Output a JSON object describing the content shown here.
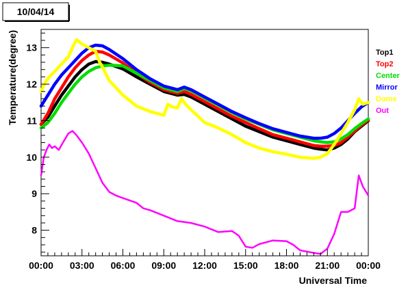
{
  "chart_data": {
    "type": "line",
    "title": "10/04/14",
    "xlabel": "Universal Time",
    "ylabel": "Temperature(degree)",
    "xlim": [
      0,
      24
    ],
    "ylim": [
      7.3,
      13.5
    ],
    "x_unit": "hours UT",
    "x_ticks": [
      {
        "value": 0,
        "label": "00:00"
      },
      {
        "value": 3,
        "label": "03:00"
      },
      {
        "value": 6,
        "label": "06:00"
      },
      {
        "value": 9,
        "label": "09:00"
      },
      {
        "value": 12,
        "label": "12:00"
      },
      {
        "value": 15,
        "label": "15:00"
      },
      {
        "value": 18,
        "label": "18:00"
      },
      {
        "value": 21,
        "label": "21:00"
      },
      {
        "value": 24,
        "label": "00:00"
      }
    ],
    "y_ticks": [
      {
        "value": 8,
        "label": "8"
      },
      {
        "value": 9,
        "label": "9"
      },
      {
        "value": 10,
        "label": "10"
      },
      {
        "value": 11,
        "label": "11"
      },
      {
        "value": 12,
        "label": "12"
      },
      {
        "value": 13,
        "label": "13"
      }
    ],
    "grid": false,
    "legend_position": "right",
    "series": [
      {
        "name": "Top1",
        "color": "#000000",
        "x": [
          0,
          0.5,
          1,
          1.5,
          2,
          2.5,
          3,
          3.5,
          4,
          4.5,
          5,
          6,
          7,
          8,
          9,
          9.5,
          10,
          10.5,
          11,
          12,
          13,
          14,
          15,
          16,
          17,
          18,
          19,
          20,
          20.5,
          21,
          21.5,
          22,
          22.5,
          23,
          23.5,
          24
        ],
        "y": [
          10.9,
          11.1,
          11.4,
          11.7,
          11.95,
          12.2,
          12.4,
          12.55,
          12.62,
          12.6,
          12.55,
          12.42,
          12.2,
          12.0,
          11.8,
          11.75,
          11.7,
          11.72,
          11.65,
          11.45,
          11.25,
          11.05,
          10.85,
          10.7,
          10.55,
          10.45,
          10.35,
          10.25,
          10.22,
          10.2,
          10.25,
          10.35,
          10.5,
          10.7,
          10.85,
          11.0
        ]
      },
      {
        "name": "Top2",
        "color": "#ff0000",
        "x": [
          0,
          0.5,
          1,
          1.5,
          2,
          2.5,
          3,
          3.5,
          4,
          4.5,
          5,
          6,
          7,
          8,
          9,
          9.5,
          10,
          10.5,
          11,
          12,
          13,
          14,
          15,
          16,
          17,
          18,
          19,
          20,
          20.5,
          21,
          21.5,
          22,
          22.5,
          23,
          23.5,
          24
        ],
        "y": [
          10.9,
          11.2,
          11.6,
          11.9,
          12.2,
          12.45,
          12.65,
          12.8,
          12.9,
          12.88,
          12.8,
          12.58,
          12.3,
          12.05,
          11.85,
          11.8,
          11.75,
          11.8,
          11.72,
          11.52,
          11.32,
          11.12,
          10.95,
          10.78,
          10.62,
          10.52,
          10.42,
          10.32,
          10.3,
          10.3,
          10.32,
          10.4,
          10.55,
          10.72,
          10.88,
          11.02
        ]
      },
      {
        "name": "Center",
        "color": "#00dd00",
        "x": [
          0,
          0.5,
          1,
          1.5,
          2,
          2.5,
          3,
          3.5,
          4,
          4.5,
          5,
          6,
          7,
          8,
          9,
          9.5,
          10,
          10.5,
          11,
          12,
          13,
          14,
          15,
          16,
          17,
          18,
          19,
          20,
          20.5,
          21,
          21.5,
          22,
          22.5,
          23,
          23.5,
          24
        ],
        "y": [
          10.8,
          10.95,
          11.2,
          11.5,
          11.75,
          12.0,
          12.2,
          12.35,
          12.45,
          12.5,
          12.52,
          12.5,
          12.3,
          12.1,
          11.9,
          11.85,
          11.8,
          11.88,
          11.82,
          11.62,
          11.42,
          11.22,
          11.05,
          10.9,
          10.75,
          10.65,
          10.55,
          10.45,
          10.42,
          10.4,
          10.42,
          10.5,
          10.62,
          10.78,
          10.92,
          11.05
        ]
      },
      {
        "name": "Mirror",
        "color": "#0000ff",
        "x": [
          0,
          0.5,
          1,
          1.5,
          2,
          2.5,
          3,
          3.5,
          4,
          4.5,
          5,
          6,
          7,
          8,
          9,
          9.5,
          10,
          10.5,
          11,
          12,
          13,
          14,
          15,
          16,
          17,
          18,
          19,
          20,
          20.5,
          21,
          21.5,
          22,
          22.5,
          23,
          23.5,
          24
        ],
        "y": [
          11.4,
          11.7,
          12.0,
          12.25,
          12.45,
          12.65,
          12.85,
          13.0,
          13.07,
          13.05,
          12.95,
          12.7,
          12.4,
          12.15,
          11.95,
          11.9,
          11.85,
          11.92,
          11.85,
          11.65,
          11.45,
          11.25,
          11.08,
          10.92,
          10.78,
          10.68,
          10.58,
          10.52,
          10.52,
          10.55,
          10.65,
          10.8,
          11.0,
          11.2,
          11.38,
          11.5
        ]
      },
      {
        "name": "Dome",
        "color": "#ffff00",
        "x": [
          0,
          0.3,
          0.6,
          1,
          1.5,
          2,
          2.3,
          2.6,
          3,
          3.5,
          4,
          4.3,
          4.6,
          5,
          6,
          7,
          8,
          9,
          9.3,
          9.6,
          10,
          10.3,
          10.6,
          11,
          12,
          13,
          14,
          15,
          16,
          17,
          18,
          19,
          20,
          20.5,
          21,
          21.5,
          22,
          22.5,
          23,
          23.3,
          23.6,
          24
        ],
        "y": [
          11.8,
          12.05,
          12.2,
          12.35,
          12.55,
          12.75,
          13.0,
          13.22,
          13.1,
          13.0,
          12.9,
          12.6,
          12.4,
          12.1,
          11.7,
          11.4,
          11.25,
          11.15,
          11.45,
          11.38,
          11.35,
          11.6,
          11.45,
          11.3,
          10.95,
          10.8,
          10.62,
          10.4,
          10.25,
          10.15,
          10.08,
          10.0,
          9.97,
          10.0,
          10.1,
          10.35,
          10.65,
          10.95,
          11.3,
          11.6,
          11.45,
          11.5
        ]
      },
      {
        "name": "Out",
        "color": "#ff00ff",
        "x": [
          0,
          0.2,
          0.4,
          0.6,
          0.8,
          1,
          1.3,
          1.6,
          2,
          2.3,
          2.6,
          3,
          3.5,
          4,
          4.5,
          5,
          5.5,
          6,
          7,
          7.5,
          8,
          9,
          10,
          11,
          12,
          13,
          14,
          14.5,
          15,
          15.5,
          16,
          17,
          18,
          18.5,
          19,
          20,
          20.5,
          21,
          21.5,
          22,
          22.5,
          23,
          23.3,
          23.6,
          24
        ],
        "y": [
          9.5,
          10.0,
          10.2,
          10.35,
          10.25,
          10.3,
          10.2,
          10.4,
          10.65,
          10.72,
          10.6,
          10.4,
          10.1,
          9.7,
          9.3,
          9.05,
          8.95,
          8.88,
          8.75,
          8.6,
          8.55,
          8.4,
          8.25,
          8.2,
          8.1,
          7.95,
          7.98,
          7.85,
          7.55,
          7.52,
          7.62,
          7.72,
          7.7,
          7.6,
          7.45,
          7.38,
          7.35,
          7.5,
          7.9,
          8.5,
          8.5,
          8.6,
          9.5,
          9.2,
          8.95
        ]
      }
    ]
  }
}
